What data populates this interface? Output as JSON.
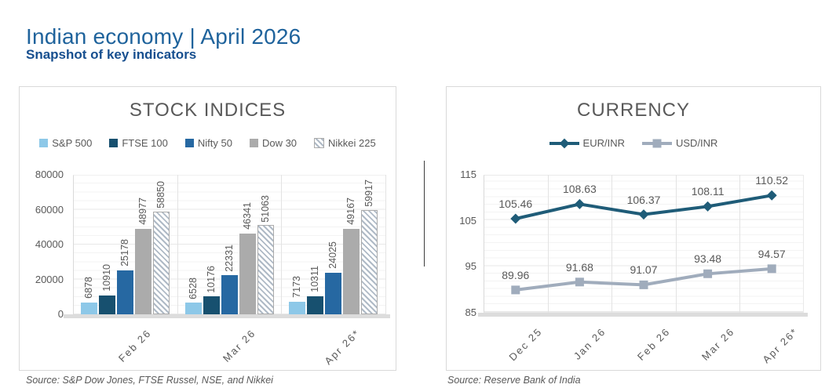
{
  "header": {
    "title": "Indian economy | April 2026",
    "subtitle": "Snapshot of key indicators"
  },
  "colors": {
    "title_blue": "#1F639C",
    "subtitle_blue": "#174F8F",
    "chart_text_gray": "#595959",
    "sp500": "#8DC8E8",
    "ftse100": "#17506F",
    "nifty50": "#2668A2",
    "dow30": "#ABABAB",
    "nikkei225_hatch": "#AFBAC6",
    "eur_inr": "#1F5C78",
    "usd_inr": "#A0ACBC"
  },
  "chart_data": [
    {
      "type": "bar",
      "title": "STOCK INDICES",
      "source": "Source: S&P Dow Jones, FTSE Russel, NSE, and Nikkei",
      "categories": [
        "Feb 26",
        "Mar 26",
        "Apr 26*"
      ],
      "series": [
        {
          "name": "S&P 500",
          "values": [
            6878,
            6528,
            7173
          ],
          "color": "#8DC8E8",
          "pattern": "solid"
        },
        {
          "name": "FTSE 100",
          "values": [
            10910,
            10176,
            10311
          ],
          "color": "#17506F",
          "pattern": "solid"
        },
        {
          "name": "Nifty 50",
          "values": [
            25178,
            22331,
            24025
          ],
          "color": "#2668A2",
          "pattern": "dots"
        },
        {
          "name": "Dow 30",
          "values": [
            48977,
            46341,
            49167
          ],
          "color": "#ABABAB",
          "pattern": "solid"
        },
        {
          "name": "Nikkei 225",
          "values": [
            58850,
            51063,
            59917
          ],
          "color": "#FFFFFF",
          "pattern": "hatch"
        }
      ],
      "ylim": [
        0,
        80000
      ],
      "yticks": [
        0,
        20000,
        40000,
        60000,
        80000
      ],
      "grid": true,
      "legend_position": "top"
    },
    {
      "type": "line",
      "title": "CURRENCY",
      "source": "Source: Reserve Bank of India",
      "categories": [
        "Dec 25",
        "Jan 26",
        "Feb 26",
        "Mar 26",
        "Apr 26*"
      ],
      "series": [
        {
          "name": "EUR/INR",
          "values": [
            105.46,
            108.63,
            106.37,
            108.11,
            110.52
          ],
          "color": "#1F5C78",
          "marker": "diamond"
        },
        {
          "name": "USD/INR",
          "values": [
            89.96,
            91.68,
            91.07,
            93.48,
            94.57
          ],
          "color": "#A0ACBC",
          "marker": "square"
        }
      ],
      "ylim": [
        85,
        115
      ],
      "yticks": [
        85,
        95,
        105,
        115
      ],
      "grid": true,
      "legend_position": "top"
    }
  ]
}
